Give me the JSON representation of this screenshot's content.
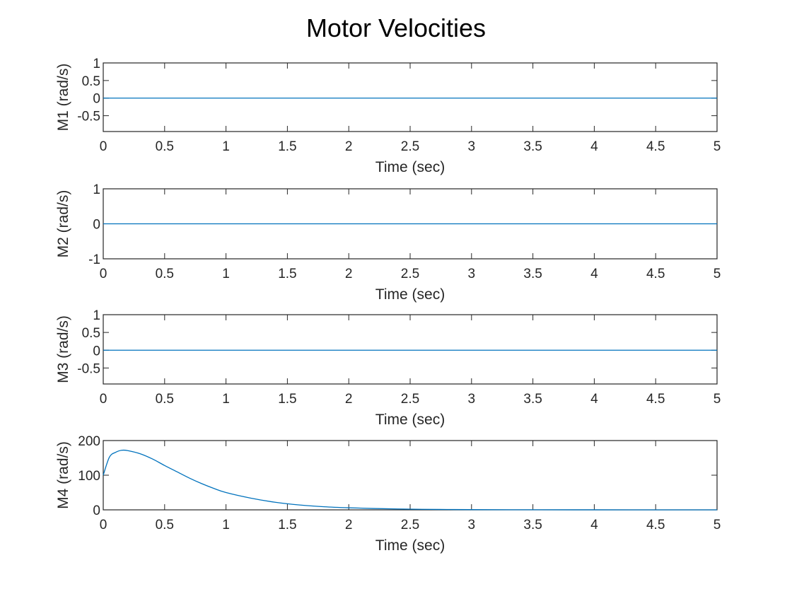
{
  "figure_title": "Motor Velocities",
  "chart_data": [
    {
      "type": "line",
      "title": "",
      "xlabel": "Time (sec)",
      "ylabel": "M1 (rad/s)",
      "xlim": [
        0,
        5
      ],
      "ylim": [
        -0.95,
        1
      ],
      "xticks": [
        "0",
        "0.5",
        "1",
        "1.5",
        "2",
        "2.5",
        "3",
        "3.5",
        "4",
        "4.5",
        "5"
      ],
      "yticks": [
        {
          "value": 1,
          "label": "1"
        },
        {
          "value": 0.5,
          "label": "0.5"
        },
        {
          "value": 0,
          "label": "0"
        },
        {
          "value": -0.5,
          "label": "-0.5"
        }
      ],
      "series": [
        {
          "color": "#0072BD",
          "x": [
            0,
            5
          ],
          "y": [
            0,
            0
          ]
        }
      ]
    },
    {
      "type": "line",
      "title": "",
      "xlabel": "Time (sec)",
      "ylabel": "M2 (rad/s)",
      "xlim": [
        0,
        5
      ],
      "ylim": [
        -1,
        1
      ],
      "xticks": [
        "0",
        "0.5",
        "1",
        "1.5",
        "2",
        "2.5",
        "3",
        "3.5",
        "4",
        "4.5",
        "5"
      ],
      "yticks": [
        {
          "value": 1,
          "label": "1"
        },
        {
          "value": 0,
          "label": "0"
        },
        {
          "value": -1,
          "label": "-1"
        }
      ],
      "series": [
        {
          "color": "#0072BD",
          "x": [
            0,
            5
          ],
          "y": [
            0,
            0
          ]
        }
      ]
    },
    {
      "type": "line",
      "title": "",
      "xlabel": "Time (sec)",
      "ylabel": "M3 (rad/s)",
      "xlim": [
        0,
        5
      ],
      "ylim": [
        -0.95,
        1
      ],
      "xticks": [
        "0",
        "0.5",
        "1",
        "1.5",
        "2",
        "2.5",
        "3",
        "3.5",
        "4",
        "4.5",
        "5"
      ],
      "yticks": [
        {
          "value": 1,
          "label": "1"
        },
        {
          "value": 0.5,
          "label": "0.5"
        },
        {
          "value": 0,
          "label": "0"
        },
        {
          "value": -0.5,
          "label": "-0.5"
        }
      ],
      "series": [
        {
          "color": "#0072BD",
          "x": [
            0,
            5
          ],
          "y": [
            0,
            0
          ]
        }
      ]
    },
    {
      "type": "line",
      "title": "",
      "xlabel": "Time (sec)",
      "ylabel": "M4 (rad/s)",
      "xlim": [
        0,
        5
      ],
      "ylim": [
        0,
        200
      ],
      "xticks": [
        "0",
        "0.5",
        "1",
        "1.5",
        "2",
        "2.5",
        "3",
        "3.5",
        "4",
        "4.5",
        "5"
      ],
      "yticks": [
        {
          "value": 200,
          "label": "200"
        },
        {
          "value": 100,
          "label": "100"
        },
        {
          "value": 0,
          "label": "0"
        }
      ],
      "series": [
        {
          "color": "#0072BD",
          "x": [
            0,
            0.05,
            0.1,
            0.15,
            0.2,
            0.3,
            0.4,
            0.5,
            0.6,
            0.7,
            0.8,
            0.9,
            1.0,
            1.2,
            1.4,
            1.6,
            1.8,
            2.0,
            2.2,
            2.4,
            2.6,
            2.8,
            3.0,
            3.5,
            4.0,
            4.5,
            5.0
          ],
          "y": [
            100,
            152,
            166,
            172,
            171,
            162,
            147,
            128,
            110,
            92,
            76,
            62,
            50,
            34,
            22,
            14,
            9,
            6,
            4,
            2.5,
            1.5,
            1,
            0.6,
            0.2,
            0.1,
            0,
            0
          ]
        }
      ]
    }
  ]
}
